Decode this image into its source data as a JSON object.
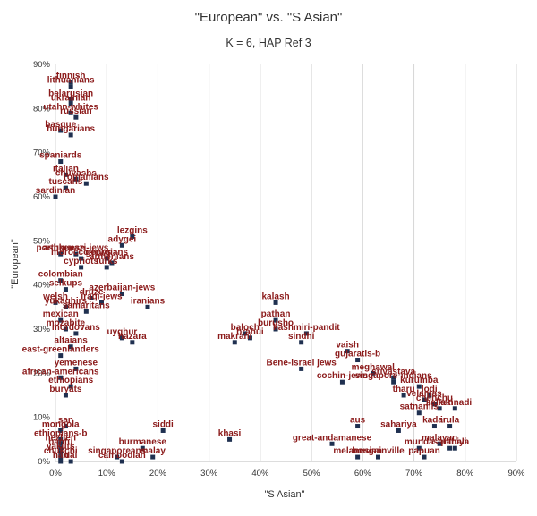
{
  "chart_data": {
    "type": "scatter",
    "title": "\"European\" vs. \"S Asian\"",
    "subtitle": "K = 6, HAP Ref 3",
    "xlabel": "\"S Asian\"",
    "ylabel": "\"European\"",
    "xlim": [
      0,
      90
    ],
    "ylim": [
      0,
      90
    ],
    "x_ticks": [
      "0%",
      "10%",
      "20%",
      "30%",
      "40%",
      "50%",
      "60%",
      "70%",
      "80%",
      "90%"
    ],
    "y_ticks": [
      "0%",
      "10%",
      "20%",
      "30%",
      "40%",
      "50%",
      "60%",
      "70%",
      "80%",
      "90%"
    ],
    "grid": "vertical",
    "legend": "none",
    "marker_color": "#1f3050",
    "label_color": "#8b1a1a",
    "points": [
      {
        "label": "finnish",
        "x": 3,
        "y": 86
      },
      {
        "label": "lithuanians",
        "x": 3,
        "y": 85
      },
      {
        "label": "belarusian",
        "x": 3,
        "y": 82
      },
      {
        "label": "ukrainian",
        "x": 3,
        "y": 81
      },
      {
        "label": "utahn-whites",
        "x": 3,
        "y": 79
      },
      {
        "label": "russian",
        "x": 4,
        "y": 78
      },
      {
        "label": "basque",
        "x": 1,
        "y": 75
      },
      {
        "label": "hungarians",
        "x": 3,
        "y": 74
      },
      {
        "label": "spaniards",
        "x": 1,
        "y": 68
      },
      {
        "label": "italian",
        "x": 2,
        "y": 65
      },
      {
        "label": "chuvashs",
        "x": 4,
        "y": 64
      },
      {
        "label": "romanians",
        "x": 6,
        "y": 63
      },
      {
        "label": "tuscans",
        "x": 2,
        "y": 62
      },
      {
        "label": "sardinian",
        "x": 0,
        "y": 60
      },
      {
        "label": "lezgins",
        "x": 15,
        "y": 51
      },
      {
        "label": "adygei",
        "x": 13,
        "y": 49
      },
      {
        "label": "ashkenazi-jews",
        "x": 4,
        "y": 47
      },
      {
        "label": "portuguese",
        "x": 1,
        "y": 47
      },
      {
        "label": "morocco-jews",
        "x": 5,
        "y": 46
      },
      {
        "label": "georgians",
        "x": 10,
        "y": 46
      },
      {
        "label": "armenians",
        "x": 11,
        "y": 45
      },
      {
        "label": "cypriots",
        "x": 5,
        "y": 44
      },
      {
        "label": "turks",
        "x": 10,
        "y": 44
      },
      {
        "label": "colombian",
        "x": 1,
        "y": 41
      },
      {
        "label": "selkups",
        "x": 2,
        "y": 39
      },
      {
        "label": "azerbaijan-jews",
        "x": 13,
        "y": 38
      },
      {
        "label": "druze",
        "x": 7,
        "y": 37
      },
      {
        "label": "welsh",
        "x": 0,
        "y": 36
      },
      {
        "label": "iraqi-jews",
        "x": 9,
        "y": 36
      },
      {
        "label": "iranians",
        "x": 18,
        "y": 35
      },
      {
        "label": "yukaghirs",
        "x": 2,
        "y": 35
      },
      {
        "label": "samaritans",
        "x": 6,
        "y": 34
      },
      {
        "label": "mexican",
        "x": 1,
        "y": 32
      },
      {
        "label": "mozabite",
        "x": 2,
        "y": 30
      },
      {
        "label": "mordovans",
        "x": 4,
        "y": 29
      },
      {
        "label": "uyghur",
        "x": 13,
        "y": 28
      },
      {
        "label": "hazara",
        "x": 15,
        "y": 27
      },
      {
        "label": "altaians",
        "x": 3,
        "y": 26
      },
      {
        "label": "east-greenlanders",
        "x": 1,
        "y": 24
      },
      {
        "label": "yemenese",
        "x": 4,
        "y": 21
      },
      {
        "label": "african-americans",
        "x": 1,
        "y": 19
      },
      {
        "label": "ethiopians",
        "x": 3,
        "y": 17
      },
      {
        "label": "buryats",
        "x": 2,
        "y": 15
      },
      {
        "label": "kalash",
        "x": 43,
        "y": 36
      },
      {
        "label": "pathan",
        "x": 43,
        "y": 32
      },
      {
        "label": "burusho",
        "x": 43,
        "y": 30
      },
      {
        "label": "baloch",
        "x": 37,
        "y": 29
      },
      {
        "label": "brahui",
        "x": 38,
        "y": 28
      },
      {
        "label": "makrani",
        "x": 35,
        "y": 27
      },
      {
        "label": "kashmiri-pandit",
        "x": 49,
        "y": 29
      },
      {
        "label": "sindhi",
        "x": 48,
        "y": 27
      },
      {
        "label": "vaish",
        "x": 57,
        "y": 25
      },
      {
        "label": "gujaratis-b",
        "x": 59,
        "y": 23
      },
      {
        "label": "Bene-israel jews",
        "x": 48,
        "y": 21
      },
      {
        "label": "meghawal",
        "x": 62,
        "y": 20
      },
      {
        "label": "cochin-jews",
        "x": 56,
        "y": 18
      },
      {
        "label": "srivastava",
        "x": 66,
        "y": 19
      },
      {
        "label": "singapore-indians",
        "x": 66,
        "y": 18
      },
      {
        "label": "kurumba",
        "x": 71,
        "y": 17
      },
      {
        "label": "tharu",
        "x": 68,
        "y": 15
      },
      {
        "label": "lodi",
        "x": 73,
        "y": 15
      },
      {
        "label": "velamas",
        "x": 72,
        "y": 14
      },
      {
        "label": "chenchu",
        "x": 74,
        "y": 13
      },
      {
        "label": "kannadi",
        "x": 78,
        "y": 12
      },
      {
        "label": "kallaki",
        "x": 75,
        "y": 12
      },
      {
        "label": "satnamis",
        "x": 71,
        "y": 11
      },
      {
        "label": "aus",
        "x": 59,
        "y": 8
      },
      {
        "label": "sahariya",
        "x": 67,
        "y": 7
      },
      {
        "label": "kadar",
        "x": 74,
        "y": 8
      },
      {
        "label": "irula",
        "x": 77,
        "y": 8
      },
      {
        "label": "great-andamanese",
        "x": 54,
        "y": 4
      },
      {
        "label": "munda",
        "x": 71,
        "y": 3
      },
      {
        "label": "malayan",
        "x": 75,
        "y": 4
      },
      {
        "label": "santhali",
        "x": 77,
        "y": 3
      },
      {
        "label": "paniya",
        "x": 78,
        "y": 3
      },
      {
        "label": "melanesian",
        "x": 59,
        "y": 1
      },
      {
        "label": "papuan",
        "x": 72,
        "y": 1
      },
      {
        "label": "bougainville",
        "x": 63,
        "y": 1
      },
      {
        "label": "khasi",
        "x": 34,
        "y": 5
      },
      {
        "label": "siddi",
        "x": 21,
        "y": 7
      },
      {
        "label": "burmanese",
        "x": 17,
        "y": 3
      },
      {
        "label": "malay",
        "x": 19,
        "y": 1
      },
      {
        "label": "singaporeans",
        "x": 12,
        "y": 1
      },
      {
        "label": "cambodian",
        "x": 13,
        "y": 0
      },
      {
        "label": "san",
        "x": 2,
        "y": 8
      },
      {
        "label": "mongola",
        "x": 1,
        "y": 7
      },
      {
        "label": "ethiopians-b",
        "x": 1,
        "y": 5
      },
      {
        "label": "hezhen",
        "x": 1,
        "y": 4
      },
      {
        "label": "bantu",
        "x": 1,
        "y": 3
      },
      {
        "label": "yakuts",
        "x": 1,
        "y": 2
      },
      {
        "label": "chukchi",
        "x": 1,
        "y": 1
      },
      {
        "label": "han",
        "x": 1,
        "y": 0
      },
      {
        "label": "dai",
        "x": 3,
        "y": 0
      }
    ]
  }
}
